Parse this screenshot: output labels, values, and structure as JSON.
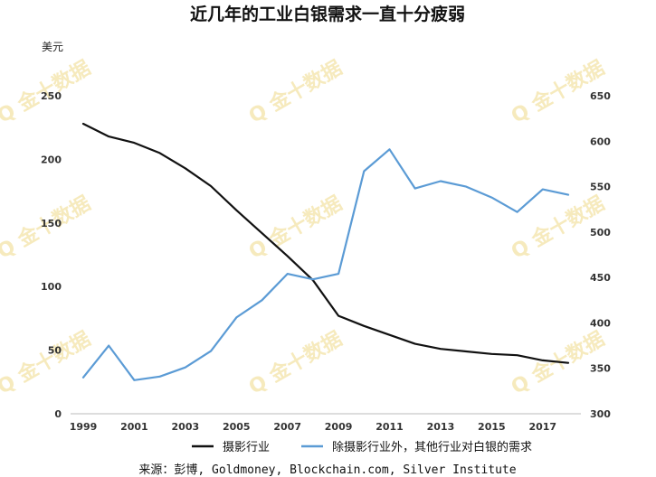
{
  "chart_data": {
    "type": "line",
    "title": "近几年的工业白银需求一直十分疲弱",
    "ylabel": "美元",
    "x": [
      1999,
      2000,
      2001,
      2002,
      2003,
      2004,
      2005,
      2006,
      2007,
      2008,
      2009,
      2010,
      2011,
      2012,
      2013,
      2014,
      2015,
      2016,
      2017,
      2018
    ],
    "x_ticks": [
      "1999",
      "2001",
      "2003",
      "2005",
      "2007",
      "2009",
      "2011",
      "2013",
      "2015",
      "2017"
    ],
    "xlim": [
      1999,
      2018
    ],
    "y_left": {
      "lim": [
        0,
        250
      ],
      "ticks": [
        "0",
        "50",
        "100",
        "150",
        "200",
        "250"
      ]
    },
    "y_right": {
      "lim": [
        300,
        650
      ],
      "ticks": [
        "300",
        "350",
        "400",
        "450",
        "500",
        "550",
        "600",
        "650"
      ]
    },
    "grid": false,
    "legend_position": "bottom",
    "series": [
      {
        "name": "摄影行业",
        "axis": "left",
        "color": "#111111",
        "values": [
          228,
          218,
          213,
          205,
          193,
          179,
          160,
          142,
          124,
          105,
          77,
          69,
          62,
          55,
          51,
          49,
          47,
          46,
          42,
          40
        ]
      },
      {
        "name": "除摄影行业外，其他行业对白银的需求",
        "axis": "right",
        "color": "#5b9bd5",
        "values": [
          340,
          375,
          337,
          341,
          351,
          369,
          406,
          425,
          454,
          448,
          454,
          567,
          591,
          548,
          556,
          550,
          538,
          522,
          547,
          541
        ]
      }
    ],
    "source": "来源：彭博, Goldmoney, Blockchain.com, Silver Institute",
    "watermark": "金十数据"
  }
}
